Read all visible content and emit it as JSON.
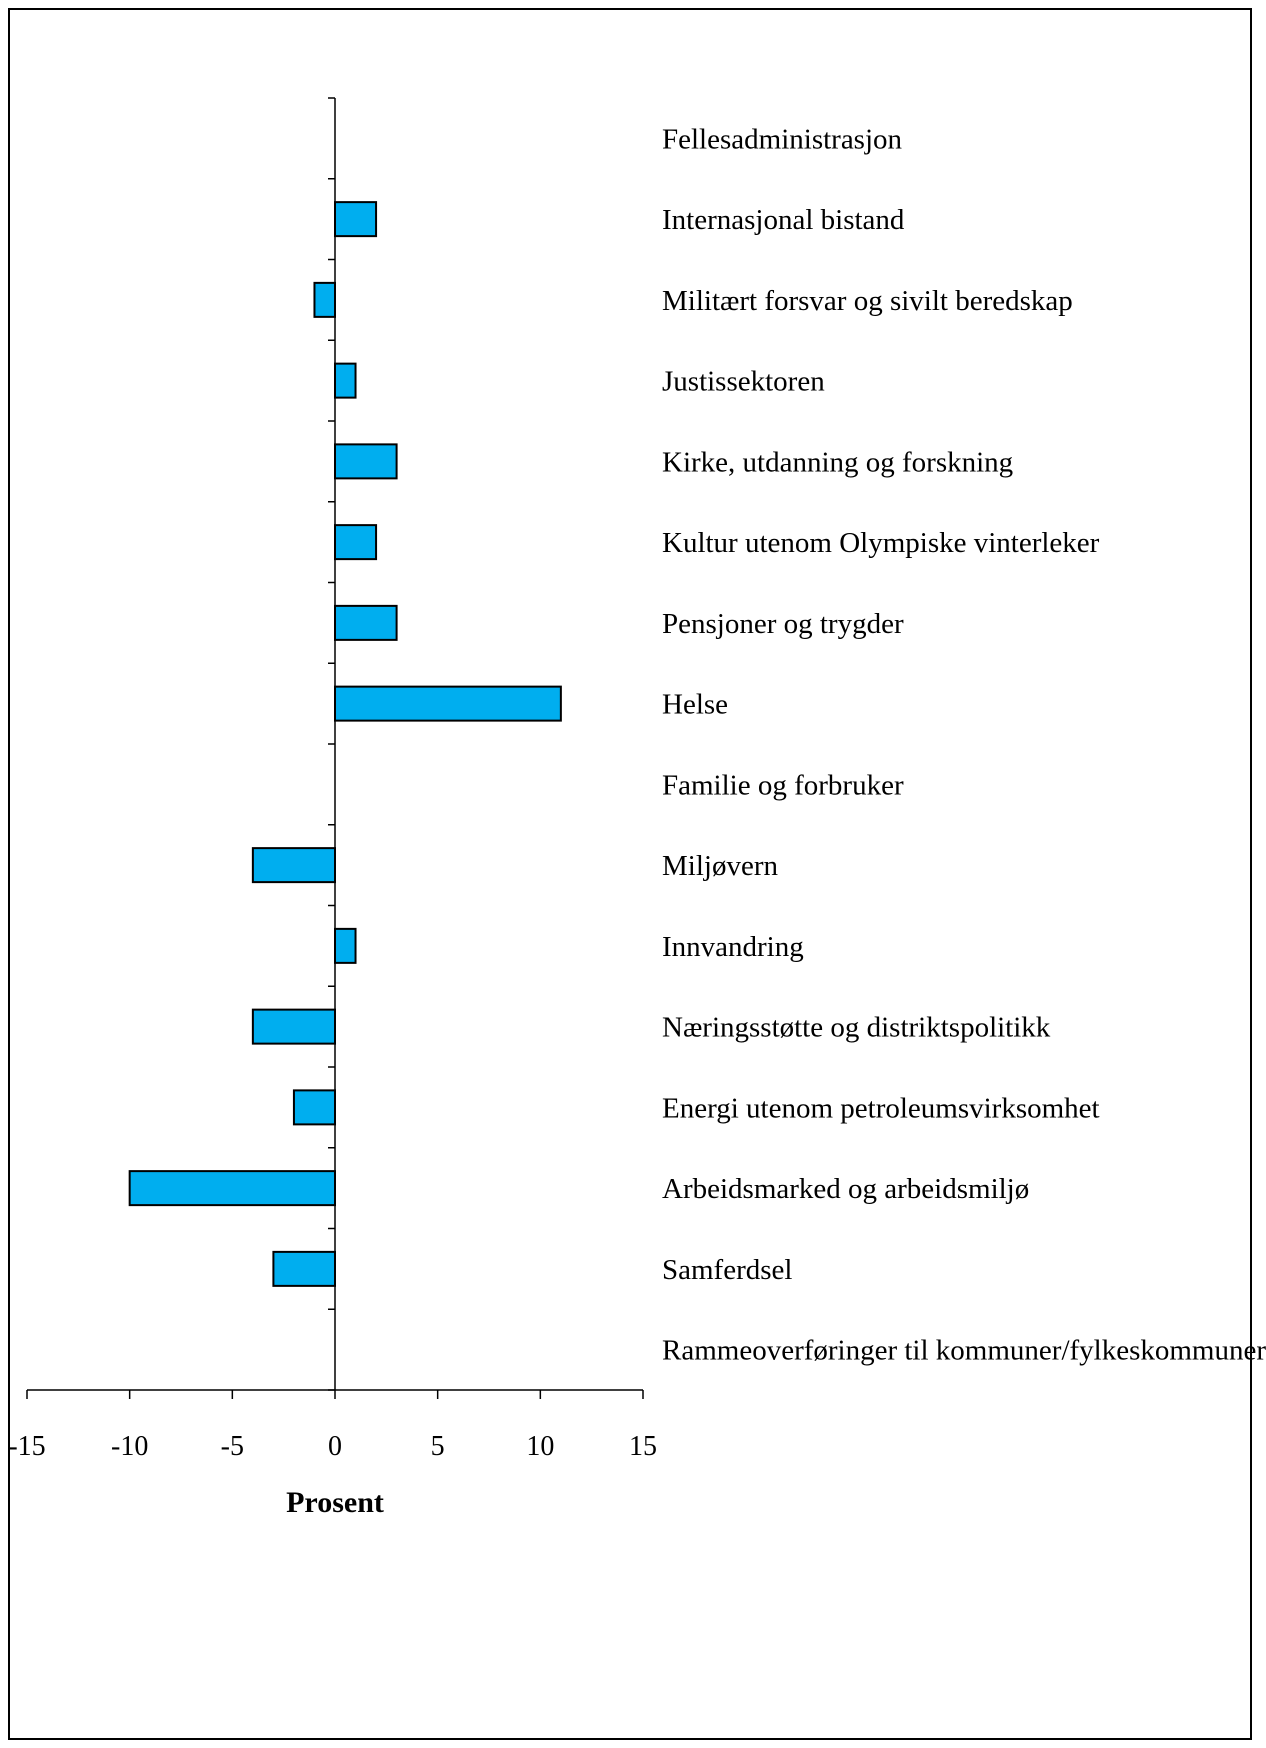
{
  "chart_data": {
    "type": "bar",
    "orientation": "horizontal",
    "categories": [
      "Fellesadministrasjon",
      "Internasjonal bistand",
      "Militært forsvar og sivilt beredskap",
      "Justissektoren",
      "Kirke, utdanning og forskning",
      "Kultur utenom Olympiske vinterleker",
      "Pensjoner og trygder",
      "Helse",
      "Familie og forbruker",
      "Miljøvern",
      "Innvandring",
      "Næringsstøtte og distriktspolitikk",
      "Energi utenom petroleumsvirksomhet",
      "Arbeidsmarked og arbeidsmiljø",
      "Samferdsel",
      "Rammeoverføringer til kommuner/fylkeskommuner"
    ],
    "values": [
      0,
      2,
      -1,
      1,
      3,
      2,
      3,
      11,
      0,
      -4,
      1,
      -4,
      -2,
      -10,
      -3,
      0
    ],
    "xlabel": "Prosent",
    "xlim": [
      -15,
      15
    ],
    "xticks": [
      -15,
      -10,
      -5,
      0,
      5,
      10,
      15
    ],
    "xtick_labels": [
      "-15",
      "-10",
      "-5",
      "0",
      "5",
      "10",
      "15"
    ],
    "bar_color": "#00aeef",
    "grid": false,
    "legend": "none"
  }
}
